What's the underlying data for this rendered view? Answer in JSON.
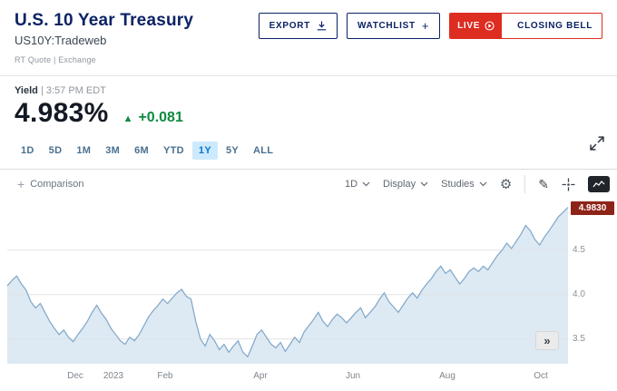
{
  "colors": {
    "navy": "#0b2265",
    "live_red": "#dd2c20",
    "up_green": "#0e8a40",
    "active_tab_bg": "#cde9fd",
    "active_tab_text": "#0b77ce",
    "badge_red": "#8e2418"
  },
  "header": {
    "title": "U.S. 10 Year Treasury",
    "symbol": "US10Y:Tradeweb",
    "quote_source": "RT Quote | Exchange"
  },
  "actions": {
    "export": "EXPORT",
    "watchlist": "WATCHLIST",
    "watchlist_plus": "+",
    "live": "LIVE",
    "closing_bell": "CLOSING BELL"
  },
  "quote": {
    "field_label": "Yield",
    "timestamp": "| 3:57 PM EDT",
    "price": "4.983%",
    "change_arrow": "▲",
    "change": "+0.081"
  },
  "ranges": {
    "items": [
      {
        "label": "1D",
        "active": false
      },
      {
        "label": "5D",
        "active": false
      },
      {
        "label": "1M",
        "active": false
      },
      {
        "label": "3M",
        "active": false
      },
      {
        "label": "6M",
        "active": false
      },
      {
        "label": "YTD",
        "active": false
      },
      {
        "label": "1Y",
        "active": true
      },
      {
        "label": "5Y",
        "active": false
      },
      {
        "label": "ALL",
        "active": false
      }
    ]
  },
  "toolbar": {
    "comparison_plus": "+",
    "comparison": "Comparison",
    "interval": "1D",
    "display": "Display",
    "studies": "Studies",
    "collapse_glyph": "»"
  },
  "icons": {
    "gear": "⚙",
    "pencil": "✎"
  },
  "chart_data": {
    "type": "area",
    "title": "U.S. 10 Year Treasury yield, 1Y range",
    "series_name": "US10Y yield (%)",
    "x_range_selected": "1Y",
    "y_range": [
      3.22,
      5.02
    ],
    "grid": true,
    "y_ticks": [
      {
        "label": "4.5",
        "value": 4.5
      },
      {
        "label": "4.0",
        "value": 4.0
      },
      {
        "label": "3.5",
        "value": 3.5
      }
    ],
    "x_labels": [
      {
        "label": "Dec",
        "pos": 0.121
      },
      {
        "label": "2023",
        "pos": 0.19
      },
      {
        "label": "Feb",
        "pos": 0.282
      },
      {
        "label": "Apr",
        "pos": 0.451
      },
      {
        "label": "Jun",
        "pos": 0.616
      },
      {
        "label": "Aug",
        "pos": 0.785
      },
      {
        "label": "Oct",
        "pos": 0.952
      }
    ],
    "last_value": 4.983,
    "last_value_label": "4.9830",
    "values": [
      4.1,
      4.16,
      4.21,
      4.12,
      4.05,
      3.92,
      3.85,
      3.9,
      3.8,
      3.7,
      3.62,
      3.55,
      3.6,
      3.52,
      3.47,
      3.55,
      3.62,
      3.7,
      3.8,
      3.88,
      3.79,
      3.72,
      3.62,
      3.55,
      3.48,
      3.44,
      3.52,
      3.48,
      3.55,
      3.65,
      3.75,
      3.82,
      3.88,
      3.95,
      3.9,
      3.96,
      4.02,
      4.06,
      3.98,
      3.95,
      3.7,
      3.5,
      3.42,
      3.55,
      3.48,
      3.38,
      3.44,
      3.35,
      3.42,
      3.48,
      3.35,
      3.3,
      3.42,
      3.55,
      3.6,
      3.52,
      3.44,
      3.4,
      3.46,
      3.36,
      3.44,
      3.52,
      3.46,
      3.58,
      3.65,
      3.72,
      3.8,
      3.7,
      3.64,
      3.72,
      3.78,
      3.74,
      3.68,
      3.74,
      3.8,
      3.85,
      3.74,
      3.8,
      3.86,
      3.95,
      4.02,
      3.92,
      3.86,
      3.8,
      3.88,
      3.96,
      4.02,
      3.96,
      4.05,
      4.12,
      4.18,
      4.26,
      4.32,
      4.24,
      4.28,
      4.2,
      4.12,
      4.18,
      4.26,
      4.3,
      4.26,
      4.32,
      4.28,
      4.36,
      4.44,
      4.5,
      4.58,
      4.52,
      4.6,
      4.68,
      4.78,
      4.72,
      4.62,
      4.56,
      4.65,
      4.72,
      4.8,
      4.88,
      4.93,
      4.983
    ],
    "line_color": "#7fa6c9",
    "fill_color": "#dde9f3",
    "grid_color": "#e2e3e5",
    "badge_color": "#8e2418"
  }
}
